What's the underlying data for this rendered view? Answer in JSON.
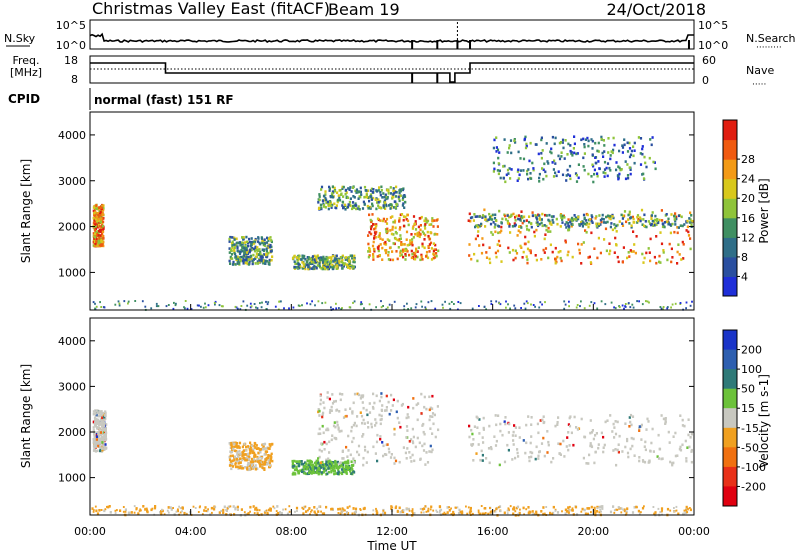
{
  "header": {
    "title": "Christmas Valley East (fitACF)",
    "beam": "Beam 19",
    "date": "24/Oct/2018"
  },
  "noise_panel": {
    "left_label": "N.Sky",
    "left_ticks": [
      "10^5",
      "10^0"
    ],
    "right_label": "N.Search",
    "right_ticks": [
      "10^5",
      "10^0"
    ]
  },
  "freq_panel": {
    "left_label_1": "Freq.",
    "left_label_2": "[MHz]",
    "left_ticks": [
      "18",
      "8"
    ],
    "right_label": "Nave",
    "right_ticks": [
      "60",
      "0"
    ]
  },
  "cpid": {
    "label": "CPID",
    "mode": "normal (fast) 151 RF"
  },
  "axes": {
    "ylabel": "Slant Range [km]",
    "xlabel": "Time UT",
    "yticks": [
      "1000",
      "2000",
      "3000",
      "4000"
    ],
    "xticks": [
      "00:00",
      "04:00",
      "08:00",
      "12:00",
      "16:00",
      "20:00",
      "00:00"
    ]
  },
  "power_colorbar": {
    "label": "Power [dB]",
    "ticks": [
      "4",
      "8",
      "12",
      "16",
      "20",
      "24",
      "28"
    ],
    "colors": [
      "#1f2fd8",
      "#2a4fa0",
      "#2f6e88",
      "#3f8f62",
      "#8fc43a",
      "#d8c81c",
      "#f39a16",
      "#f05a10",
      "#e01d10"
    ]
  },
  "velocity_colorbar": {
    "label": "Velocity [m s-1]",
    "ticks": [
      "200",
      "100",
      "50",
      "15",
      "-15",
      "-50",
      "-100",
      "-200"
    ],
    "colors": [
      "#1a34c8",
      "#2e5fb0",
      "#2f7a78",
      "#6cc23a",
      "#c8c8c0",
      "#f0a020",
      "#f07010",
      "#e83018",
      "#e00010"
    ]
  },
  "chart_data": {
    "type": "heatmap",
    "x_range_hours": [
      0,
      24
    ],
    "y_range_km": [
      180,
      4500
    ],
    "power_regions": [
      {
        "t0": 0.1,
        "t1": 0.5,
        "r0": 1600,
        "r1": 2500,
        "level": "high"
      },
      {
        "t0": 5.5,
        "t1": 7.2,
        "r0": 1200,
        "r1": 1800,
        "level": "mid"
      },
      {
        "t0": 8.0,
        "t1": 10.5,
        "r0": 1100,
        "r1": 1400,
        "level": "mid"
      },
      {
        "t0": 9.0,
        "t1": 12.5,
        "r0": 2400,
        "r1": 2900,
        "level": "mid"
      },
      {
        "t0": 11.0,
        "t1": 13.8,
        "r0": 1300,
        "r1": 2300,
        "level": "high"
      },
      {
        "t0": 15.0,
        "t1": 23.9,
        "r0": 1200,
        "r1": 2400,
        "level": "high"
      },
      {
        "t0": 15.0,
        "t1": 23.9,
        "r0": 2000,
        "r1": 2300,
        "level": "mid"
      },
      {
        "t0": 16.0,
        "t1": 22.5,
        "r0": 3000,
        "r1": 4000,
        "level": "low"
      }
    ],
    "velocity_regions": [
      {
        "t0": 0.1,
        "t1": 0.6,
        "r0": 1600,
        "r1": 2500,
        "class": "low"
      },
      {
        "t0": 5.5,
        "t1": 7.2,
        "r0": 1200,
        "r1": 1800,
        "class": "negative"
      },
      {
        "t0": 8.0,
        "t1": 10.5,
        "r0": 1100,
        "r1": 1400,
        "class": "positive-small"
      },
      {
        "t0": 9.0,
        "t1": 13.8,
        "r0": 1300,
        "r1": 2900,
        "class": "low"
      },
      {
        "t0": 15.0,
        "t1": 23.9,
        "r0": 1300,
        "r1": 2400,
        "class": "low"
      },
      {
        "t0": 0.0,
        "t1": 23.9,
        "r0": 200,
        "r1": 400,
        "class": "negative"
      }
    ]
  }
}
